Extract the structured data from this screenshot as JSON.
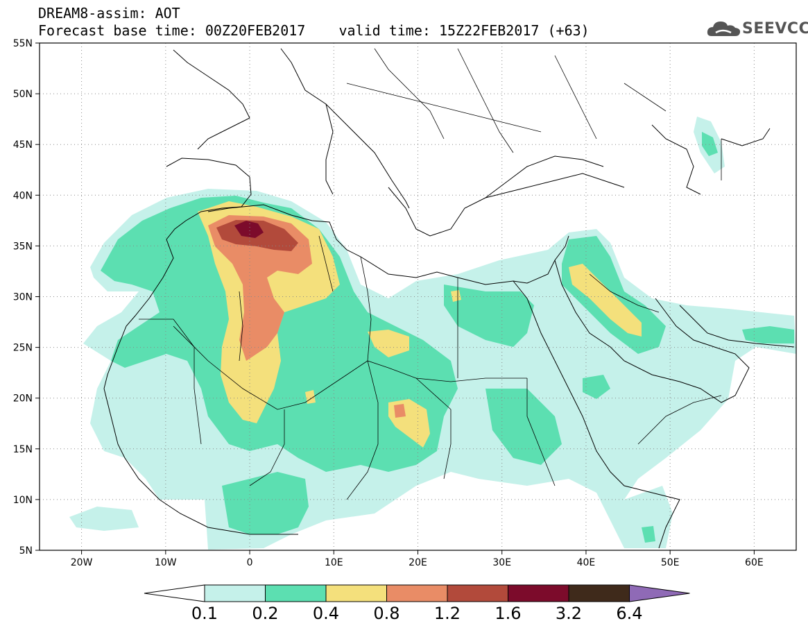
{
  "header": {
    "title_line1": "DREAM8-assim: AOT",
    "title_line2": "Forecast base time: 00Z20FEB2017    valid time: 15Z22FEB2017 (+63)",
    "brand": "SEEVCCC"
  },
  "map": {
    "lat_labels": [
      "55N",
      "50N",
      "45N",
      "40N",
      "35N",
      "30N",
      "25N",
      "20N",
      "15N",
      "10N",
      "5N"
    ],
    "lon_labels": [
      "20W",
      "10W",
      "0",
      "10E",
      "20E",
      "30E",
      "40E",
      "50E",
      "60E"
    ],
    "lat_range": [
      5,
      55
    ],
    "lon_range": [
      -25,
      65
    ],
    "grid": "dotted",
    "colors": {
      "c1": "#c5f1ea",
      "c2": "#5cdfb1",
      "c3": "#f4e07c",
      "c4": "#e98c66",
      "c5": "#b24a3b",
      "c6": "#7c0b2b",
      "c7": "#3f2a1b",
      "c8": "#8f6ab6"
    }
  },
  "legend": {
    "labels": [
      "0.1",
      "0.2",
      "0.4",
      "0.8",
      "1.2",
      "1.6",
      "3.2",
      "6.4"
    ],
    "colors": [
      "#c5f1ea",
      "#5cdfb1",
      "#f4e07c",
      "#e98c66",
      "#b24a3b",
      "#7c0b2b",
      "#3f2a1b"
    ],
    "over_color": "#8f6ab6"
  }
}
